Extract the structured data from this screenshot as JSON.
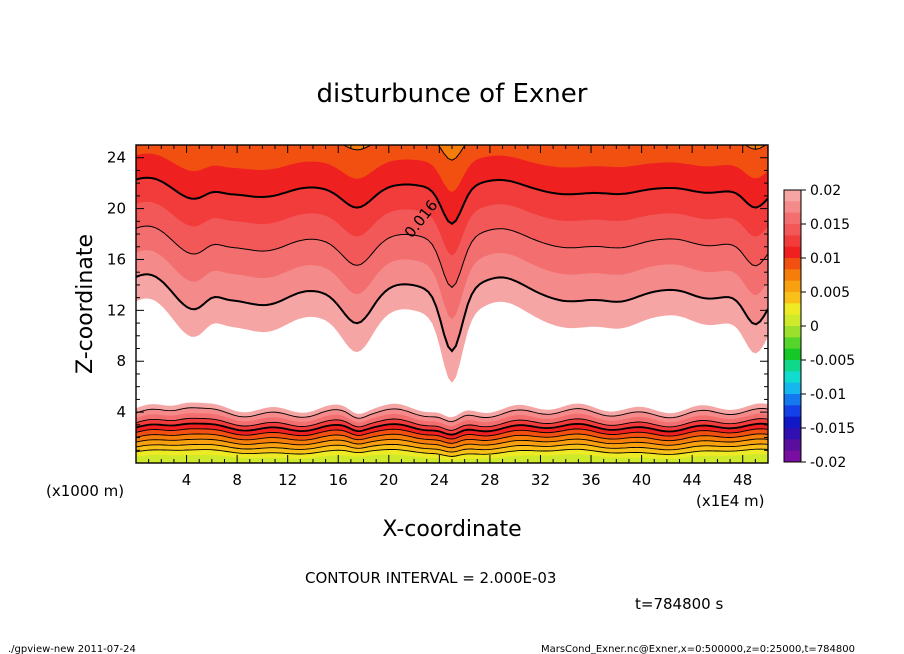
{
  "chart_data": {
    "type": "heatmap",
    "subtype": "filled-contour",
    "title": "disturbunce of Exner",
    "xlabel": "X-coordinate",
    "ylabel": "Z-coordinate",
    "x_unit_note": "(x1E4 m)",
    "y_unit_note": "(x1000 m)",
    "xlim": [
      0,
      50
    ],
    "ylim": [
      0,
      25
    ],
    "x_ticks": [
      4,
      8,
      12,
      16,
      20,
      24,
      28,
      32,
      36,
      40,
      44,
      48
    ],
    "y_ticks": [
      4,
      8,
      12,
      16,
      20,
      24
    ],
    "contour_label": "0.016",
    "contour_interval_text": "CONTOUR INTERVAL = 2.000E-03",
    "time_text": "t=784800 s",
    "colorbar": {
      "min": -0.02,
      "max": 0.02,
      "tick_labels": [
        "0.02",
        "0.015",
        "0.01",
        "0.005",
        "0",
        "-0.005",
        "-0.01",
        "-0.015",
        "-0.02"
      ],
      "tick_values": [
        0.02,
        0.015,
        0.01,
        0.005,
        0,
        -0.005,
        -0.01,
        -0.015,
        -0.02
      ],
      "colors": [
        "#f6a5a5",
        "#f58a8a",
        "#f36f6f",
        "#f25858",
        "#f23c3c",
        "#ef2020",
        "#f25010",
        "#f57d0a",
        "#f8a010",
        "#f8c018",
        "#eeea25",
        "#cfe92b",
        "#9cdf2c",
        "#55d42a",
        "#15c828",
        "#10d88a",
        "#12dcd0",
        "#14b8ee",
        "#1478ee",
        "#1440e8",
        "#1018c8",
        "#3010b0",
        "#5a0e9e",
        "#7a0ea0"
      ]
    },
    "levels": [
      {
        "value": 0.02,
        "color": "#f6a5a5"
      },
      {
        "value": 0.018,
        "color": "#f58a8a"
      },
      {
        "value": 0.016,
        "color": "#f36f6f"
      },
      {
        "value": 0.014,
        "color": "#f25858"
      },
      {
        "value": 0.012,
        "color": "#f23c3c"
      },
      {
        "value": 0.01,
        "color": "#f57d0a"
      },
      {
        "value": 0.008,
        "color": "#f8c018"
      },
      {
        "value": 0.006,
        "color": "#cfe92b"
      }
    ]
  },
  "footer": {
    "left": "./gpview-new   2011-07-24",
    "right": "MarsCond_Exner.nc@Exner,x=0:500000,z=0:25000,t=784800"
  }
}
